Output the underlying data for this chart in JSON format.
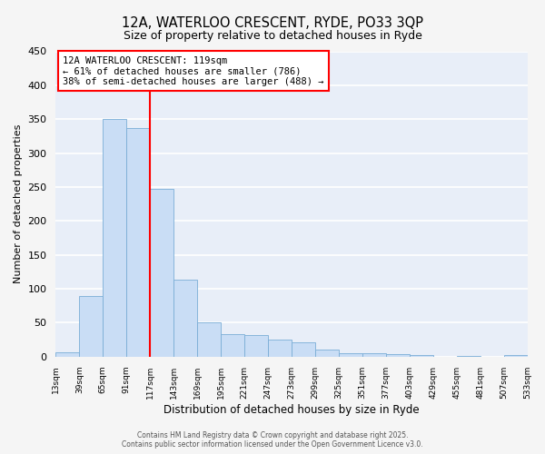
{
  "title": "12A, WATERLOO CRESCENT, RYDE, PO33 3QP",
  "subtitle": "Size of property relative to detached houses in Ryde",
  "xlabel": "Distribution of detached houses by size in Ryde",
  "ylabel": "Number of detached properties",
  "bar_color": "#c9ddf5",
  "bar_edge_color": "#7aadd6",
  "background_color": "#e8eef8",
  "grid_color": "#ffffff",
  "vline_color": "red",
  "bins": [
    13,
    39,
    65,
    91,
    117,
    143,
    169,
    195,
    221,
    247,
    273,
    299,
    325,
    351,
    377,
    403,
    429,
    455,
    481,
    507,
    533
  ],
  "values": [
    6,
    89,
    350,
    337,
    247,
    113,
    50,
    33,
    32,
    25,
    21,
    10,
    5,
    5,
    4,
    2,
    0,
    1,
    0,
    2
  ],
  "ylim": [
    0,
    450
  ],
  "yticks": [
    0,
    50,
    100,
    150,
    200,
    250,
    300,
    350,
    400,
    450
  ],
  "annotation_title": "12A WATERLOO CRESCENT: 119sqm",
  "annotation_line1": "← 61% of detached houses are smaller (786)",
  "annotation_line2": "38% of semi-detached houses are larger (488) →",
  "annotation_box_color": "#ffffff",
  "annotation_box_edge": "red",
  "footer1": "Contains HM Land Registry data © Crown copyright and database right 2025.",
  "footer2": "Contains public sector information licensed under the Open Government Licence v3.0.",
  "tick_labels": [
    "13sqm",
    "39sqm",
    "65sqm",
    "91sqm",
    "117sqm",
    "143sqm",
    "169sqm",
    "195sqm",
    "221sqm",
    "247sqm",
    "273sqm",
    "299sqm",
    "325sqm",
    "351sqm",
    "377sqm",
    "403sqm",
    "429sqm",
    "455sqm",
    "481sqm",
    "507sqm",
    "533sqm"
  ],
  "fig_bg": "#f5f5f5"
}
